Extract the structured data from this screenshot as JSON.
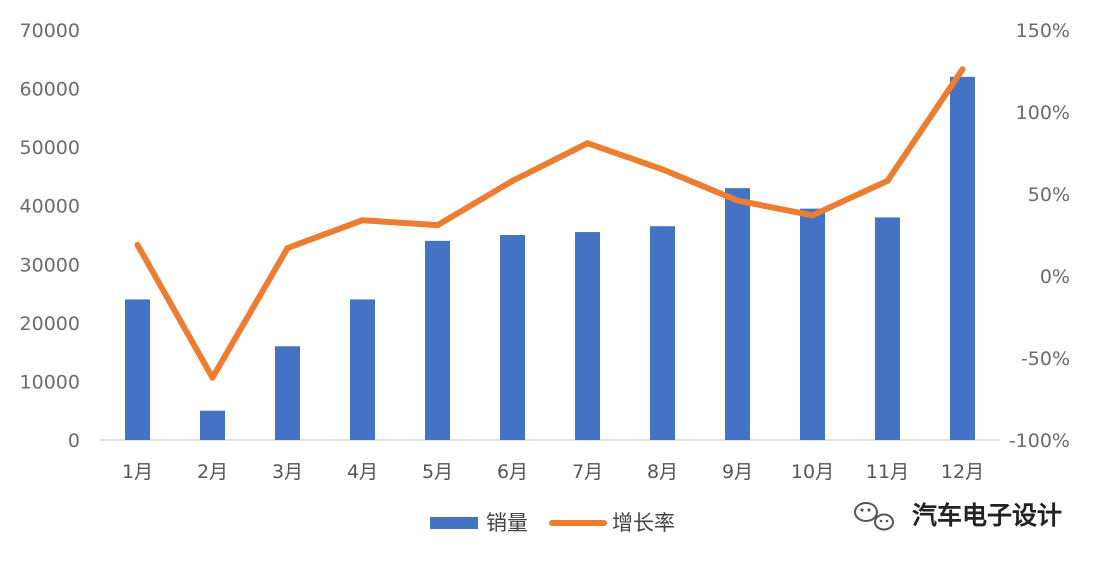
{
  "chart_data": {
    "type": "bar",
    "categories": [
      "1月",
      "2月",
      "3月",
      "4月",
      "5月",
      "6月",
      "7月",
      "8月",
      "9月",
      "10月",
      "11月",
      "12月"
    ],
    "series": [
      {
        "name": "销量",
        "type": "bar",
        "axis": "left",
        "color": "#4472c4",
        "values": [
          24000,
          5000,
          16000,
          24000,
          34000,
          35000,
          35500,
          36500,
          43000,
          39500,
          38000,
          62000
        ]
      },
      {
        "name": "增长率",
        "type": "line",
        "axis": "right",
        "color": "#ed7d31",
        "values": [
          19,
          -62,
          17,
          34,
          31,
          58,
          81,
          65,
          46,
          37,
          58,
          126
        ]
      }
    ],
    "y_left": {
      "ylim": [
        0,
        70000
      ],
      "ticks": [
        0,
        10000,
        20000,
        30000,
        40000,
        50000,
        60000,
        70000
      ]
    },
    "y_right": {
      "ylim": [
        -100,
        150
      ],
      "ticks": [
        -100,
        -50,
        0,
        50,
        100,
        150
      ],
      "tick_labels": [
        "-100%",
        "-50%",
        "0%",
        "50%",
        "100%",
        "150%"
      ]
    },
    "legend": {
      "placement": "bottom-center"
    },
    "grid": false
  },
  "watermark": {
    "text": "汽车电子设计",
    "icon": "wechat-icon"
  }
}
